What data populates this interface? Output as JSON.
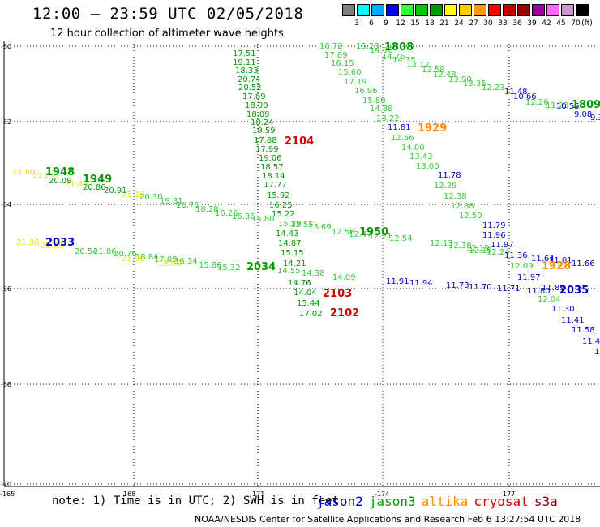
{
  "title": "12:00 – 23:59 UTC 02/05/2018",
  "subtitle": "12 hour collection of altimeter wave heights",
  "colorbar": {
    "labels": [
      "3",
      "6",
      "9",
      "12",
      "15",
      "18",
      "21",
      "24",
      "27",
      "30",
      "33",
      "36",
      "39",
      "42",
      "45",
      "70"
    ],
    "unit": "(ft)",
    "colors": [
      "#7f7f7f",
      "#00ffff",
      "#00aaff",
      "#0000ff",
      "#33ff33",
      "#00cc00",
      "#009900",
      "#ffff00",
      "#ffcc00",
      "#ff9900",
      "#ff0000",
      "#cc0000",
      "#990000",
      "#990099",
      "#ff66ff",
      "#cc99cc",
      "#000000"
    ]
  },
  "lat_labels": [
    "-60",
    "-62",
    "-64",
    "-66",
    "-68",
    "-70"
  ],
  "lon_labels": [
    "-165",
    "168",
    "171",
    "-174",
    "177"
  ],
  "note": "note: 1) Time is in UTC; 2) SWH is in feet",
  "legend": [
    {
      "name": "jason2",
      "color": "#0000cc"
    },
    {
      "name": "jason3",
      "color": "#009900"
    },
    {
      "name": "altika",
      "color": "#ff8c00"
    },
    {
      "name": "cryosat",
      "color": "#cc0000"
    },
    {
      "name": "s3a",
      "color": "#8b0000"
    }
  ],
  "credit": "NOAA/NESDIS Center for Satellite Applications and Research    Feb  6 13:27:54 UTC 2018",
  "tracks": {
    "t1": {
      "color": "#009900",
      "values": [
        "17.51",
        "19.11",
        "18.33",
        "20.74",
        "20.52",
        "17.69",
        "18.00",
        "18.09",
        "18.24",
        "19.59",
        "17.88",
        "17.99",
        "19.06",
        "18.57",
        "18.14",
        "17.77",
        "15.92",
        "16.25",
        "15.22",
        "14.43",
        "14.87",
        "15.15",
        "14.21",
        "14.76",
        "14.04",
        "15.44",
        "17.02"
      ]
    },
    "t2": {
      "color": "#33cc33",
      "values": [
        "16.72",
        "17.89",
        "16.15",
        "15.60",
        "17.19",
        "16.96",
        "15.80",
        "14.88",
        "13.22",
        "12.56",
        "14.00",
        "13.43",
        "13.00",
        "12.29",
        "12.38",
        "12.88",
        "12.50",
        "12.19",
        "12.09"
      ]
    },
    "t3": {
      "color": "#33cc33",
      "values": [
        "15.23",
        "14.96",
        "14.76",
        "14.35",
        "13.12",
        "12.58",
        "12.48",
        "13.90",
        "13.35",
        "12.23",
        "12.26",
        "11.23"
      ]
    },
    "t4": {
      "color": "#33cc33",
      "values": [
        "20.30",
        "19.81",
        "18.73",
        "18.28",
        "16.26",
        "16.36",
        "15.80",
        "15.39",
        "13.55",
        "13.69",
        "12.58",
        "12.47",
        "12.21",
        "12.54",
        "12.13",
        "12.38",
        "12.19",
        "12.24"
      ]
    },
    "t5": {
      "color": "#33cc33",
      "values": [
        "20.54",
        "21.86",
        "18.84",
        "17.05",
        "16.34",
        "15.86",
        "15.32",
        "14.55",
        "14.38",
        "14.09"
      ]
    },
    "t6": {
      "color": "#0000cc",
      "values": [
        "11.81",
        "11.78",
        "11.79",
        "11.96",
        "11.97",
        "11.36",
        "11.64",
        "11.01",
        "11.66",
        "11.97",
        "11.30",
        "11.41",
        "11.58",
        "11.4"
      ]
    },
    "t7": {
      "color": "#0000cc",
      "values": [
        "11.48",
        "10.66",
        "10.55",
        "9.08",
        "9.3"
      ]
    },
    "t8": {
      "color": "#0000cc",
      "values": [
        "11.91",
        "11.94",
        "11.73",
        "11.70",
        "11.71",
        "11.80",
        "11.89"
      ]
    },
    "t9": {
      "color": "#33cc33",
      "values": [
        "12.04"
      ]
    }
  },
  "times": [
    {
      "text": "1808",
      "color": "#009900"
    },
    {
      "text": "1809",
      "color": "#009900"
    },
    {
      "text": "1929",
      "color": "#ff8c00"
    },
    {
      "text": "2104",
      "color": "#cc0000"
    },
    {
      "text": "1948",
      "color": "#009900"
    },
    {
      "text": "1949",
      "color": "#009900"
    },
    {
      "text": "1950",
      "color": "#009900"
    },
    {
      "text": "2103",
      "color": "#cc0000"
    },
    {
      "text": "2102",
      "color": "#cc0000"
    },
    {
      "text": "1928",
      "color": "#ff8c00"
    },
    {
      "text": "2033",
      "color": "#0000cc"
    },
    {
      "text": "2034",
      "color": "#009900"
    },
    {
      "text": "2035",
      "color": "#0000cc"
    }
  ],
  "yellow_values": [
    "21.66",
    "22.09",
    "21.43",
    "21.18",
    "21.86",
    "22.09",
    "21.90",
    "19.90"
  ],
  "misc_values": [
    "20.09",
    "20.86",
    "20.91",
    "20.76",
    "11.5"
  ]
}
